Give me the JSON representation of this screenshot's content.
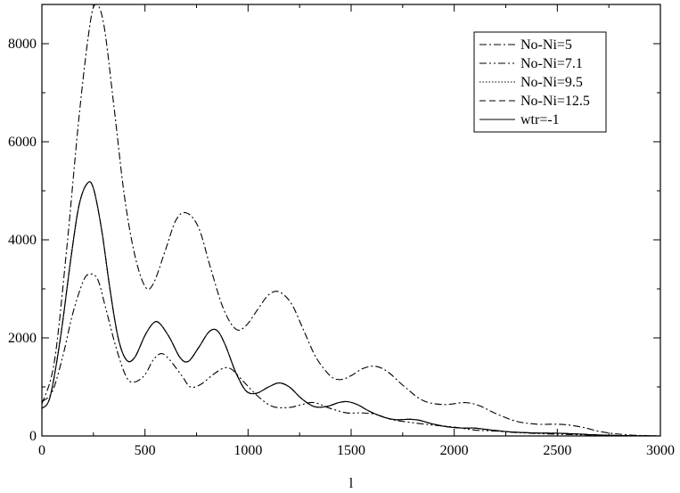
{
  "chart_data": {
    "type": "line",
    "title": "",
    "xlabel": "l",
    "ylabel": "",
    "xlim": [
      0,
      3000
    ],
    "ylim": [
      0,
      8800
    ],
    "grid": false,
    "legend_position": "top-right",
    "x_ticks": [
      0,
      500,
      1000,
      1500,
      2000,
      2500,
      3000
    ],
    "x_tick_labels": [
      "0",
      "500",
      "1000",
      "1500",
      "2000",
      "2500",
      "3000"
    ],
    "y_ticks": [
      0,
      2000,
      4000,
      6000,
      8000
    ],
    "y_tick_labels": [
      "0",
      "2000",
      "4000",
      "6000",
      "8000"
    ],
    "series": [
      {
        "name": "No-Ni=5",
        "dash": "dash-dot",
        "points": [
          [
            0,
            650
          ],
          [
            60,
            1500
          ],
          [
            120,
            3800
          ],
          [
            180,
            6500
          ],
          [
            230,
            8300
          ],
          [
            260,
            8800
          ],
          [
            300,
            8400
          ],
          [
            350,
            6700
          ],
          [
            400,
            4900
          ],
          [
            450,
            3700
          ],
          [
            500,
            3050
          ],
          [
            540,
            3100
          ],
          [
            600,
            3800
          ],
          [
            650,
            4400
          ],
          [
            700,
            4550
          ],
          [
            760,
            4250
          ],
          [
            820,
            3400
          ],
          [
            880,
            2600
          ],
          [
            940,
            2180
          ],
          [
            990,
            2250
          ],
          [
            1050,
            2600
          ],
          [
            1100,
            2880
          ],
          [
            1150,
            2940
          ],
          [
            1210,
            2700
          ],
          [
            1270,
            2150
          ],
          [
            1330,
            1600
          ],
          [
            1400,
            1220
          ],
          [
            1450,
            1150
          ],
          [
            1500,
            1230
          ],
          [
            1560,
            1380
          ],
          [
            1620,
            1420
          ],
          [
            1680,
            1300
          ],
          [
            1760,
            1000
          ],
          [
            1850,
            720
          ],
          [
            1950,
            640
          ],
          [
            2050,
            680
          ],
          [
            2120,
            620
          ],
          [
            2200,
            460
          ],
          [
            2300,
            300
          ],
          [
            2400,
            240
          ],
          [
            2480,
            240
          ],
          [
            2540,
            230
          ],
          [
            2620,
            180
          ],
          [
            2720,
            80
          ],
          [
            2850,
            20
          ],
          [
            3000,
            0
          ]
        ]
      },
      {
        "name": "No-Ni=7.1",
        "dash": "dash-dot-dot",
        "points": [
          [
            0,
            700
          ],
          [
            50,
            900
          ],
          [
            100,
            1600
          ],
          [
            150,
            2500
          ],
          [
            200,
            3150
          ],
          [
            230,
            3300
          ],
          [
            270,
            3200
          ],
          [
            310,
            2600
          ],
          [
            360,
            1800
          ],
          [
            410,
            1200
          ],
          [
            450,
            1100
          ],
          [
            500,
            1250
          ],
          [
            540,
            1550
          ],
          [
            580,
            1680
          ],
          [
            620,
            1550
          ],
          [
            680,
            1220
          ],
          [
            720,
            1000
          ],
          [
            770,
            1050
          ],
          [
            830,
            1250
          ],
          [
            880,
            1380
          ],
          [
            920,
            1360
          ],
          [
            980,
            1100
          ],
          [
            1050,
            800
          ],
          [
            1120,
            600
          ],
          [
            1200,
            580
          ],
          [
            1260,
            640
          ],
          [
            1320,
            680
          ],
          [
            1400,
            560
          ],
          [
            1480,
            470
          ],
          [
            1550,
            470
          ],
          [
            1620,
            440
          ],
          [
            1700,
            330
          ],
          [
            1800,
            270
          ],
          [
            1900,
            220
          ],
          [
            2000,
            180
          ],
          [
            2100,
            120
          ],
          [
            2200,
            100
          ],
          [
            2300,
            70
          ],
          [
            2400,
            50
          ],
          [
            2500,
            35
          ],
          [
            2600,
            25
          ],
          [
            2700,
            15
          ],
          [
            2850,
            5
          ],
          [
            3000,
            0
          ]
        ]
      },
      {
        "name": "No-Ni=9.5",
        "dash": "dotted",
        "points": [
          [
            0,
            560
          ],
          [
            40,
            800
          ],
          [
            90,
            2000
          ],
          [
            140,
            3600
          ],
          [
            180,
            4700
          ],
          [
            220,
            5150
          ],
          [
            250,
            5050
          ],
          [
            290,
            4200
          ],
          [
            330,
            3000
          ],
          [
            370,
            2000
          ],
          [
            410,
            1550
          ],
          [
            450,
            1600
          ],
          [
            500,
            2050
          ],
          [
            540,
            2300
          ],
          [
            570,
            2300
          ],
          [
            620,
            2000
          ],
          [
            670,
            1600
          ],
          [
            710,
            1520
          ],
          [
            760,
            1800
          ],
          [
            810,
            2120
          ],
          [
            850,
            2150
          ],
          [
            890,
            1850
          ],
          [
            940,
            1300
          ],
          [
            990,
            920
          ],
          [
            1040,
            870
          ],
          [
            1100,
            1000
          ],
          [
            1150,
            1080
          ],
          [
            1200,
            1000
          ],
          [
            1260,
            760
          ],
          [
            1320,
            600
          ],
          [
            1380,
            600
          ],
          [
            1440,
            680
          ],
          [
            1480,
            700
          ],
          [
            1530,
            640
          ],
          [
            1590,
            500
          ],
          [
            1660,
            380
          ],
          [
            1720,
            330
          ],
          [
            1780,
            340
          ],
          [
            1830,
            320
          ],
          [
            1900,
            240
          ],
          [
            1980,
            180
          ],
          [
            2050,
            160
          ],
          [
            2100,
            160
          ],
          [
            2180,
            120
          ],
          [
            2280,
            80
          ],
          [
            2400,
            60
          ],
          [
            2500,
            55
          ],
          [
            2600,
            40
          ],
          [
            2700,
            20
          ],
          [
            2850,
            5
          ],
          [
            3000,
            0
          ]
        ]
      },
      {
        "name": "No-Ni=12.5",
        "dash": "dashed",
        "points": [
          [
            0,
            560
          ],
          [
            40,
            800
          ],
          [
            90,
            2000
          ],
          [
            140,
            3600
          ],
          [
            180,
            4700
          ],
          [
            220,
            5150
          ],
          [
            250,
            5050
          ],
          [
            290,
            4200
          ],
          [
            330,
            3000
          ],
          [
            370,
            2000
          ],
          [
            410,
            1550
          ],
          [
            450,
            1600
          ],
          [
            500,
            2050
          ],
          [
            540,
            2300
          ],
          [
            570,
            2300
          ],
          [
            620,
            2000
          ],
          [
            670,
            1600
          ],
          [
            710,
            1520
          ],
          [
            760,
            1800
          ],
          [
            810,
            2120
          ],
          [
            850,
            2150
          ],
          [
            890,
            1850
          ],
          [
            940,
            1300
          ],
          [
            990,
            920
          ],
          [
            1040,
            870
          ],
          [
            1100,
            1000
          ],
          [
            1150,
            1080
          ],
          [
            1200,
            1000
          ],
          [
            1260,
            760
          ],
          [
            1320,
            600
          ],
          [
            1380,
            600
          ],
          [
            1440,
            680
          ],
          [
            1480,
            700
          ],
          [
            1530,
            640
          ],
          [
            1590,
            500
          ],
          [
            1660,
            380
          ],
          [
            1720,
            330
          ],
          [
            1780,
            340
          ],
          [
            1830,
            320
          ],
          [
            1900,
            240
          ],
          [
            1980,
            180
          ],
          [
            2050,
            160
          ],
          [
            2100,
            160
          ],
          [
            2180,
            120
          ],
          [
            2280,
            80
          ],
          [
            2400,
            60
          ],
          [
            2500,
            55
          ],
          [
            2600,
            40
          ],
          [
            2700,
            20
          ],
          [
            2850,
            5
          ],
          [
            3000,
            0
          ]
        ]
      },
      {
        "name": "wtr=-1",
        "dash": "solid",
        "points": [
          [
            0,
            560
          ],
          [
            40,
            800
          ],
          [
            90,
            2000
          ],
          [
            140,
            3600
          ],
          [
            180,
            4700
          ],
          [
            220,
            5150
          ],
          [
            250,
            5050
          ],
          [
            290,
            4200
          ],
          [
            330,
            3000
          ],
          [
            370,
            2000
          ],
          [
            410,
            1550
          ],
          [
            450,
            1600
          ],
          [
            500,
            2050
          ],
          [
            540,
            2300
          ],
          [
            570,
            2300
          ],
          [
            620,
            2000
          ],
          [
            670,
            1600
          ],
          [
            710,
            1520
          ],
          [
            760,
            1800
          ],
          [
            810,
            2120
          ],
          [
            850,
            2150
          ],
          [
            890,
            1850
          ],
          [
            940,
            1300
          ],
          [
            990,
            920
          ],
          [
            1040,
            870
          ],
          [
            1100,
            1000
          ],
          [
            1150,
            1080
          ],
          [
            1200,
            1000
          ],
          [
            1260,
            760
          ],
          [
            1320,
            600
          ],
          [
            1380,
            600
          ],
          [
            1440,
            680
          ],
          [
            1480,
            700
          ],
          [
            1530,
            640
          ],
          [
            1590,
            500
          ],
          [
            1660,
            380
          ],
          [
            1720,
            330
          ],
          [
            1780,
            340
          ],
          [
            1830,
            320
          ],
          [
            1900,
            240
          ],
          [
            1980,
            180
          ],
          [
            2050,
            160
          ],
          [
            2100,
            160
          ],
          [
            2180,
            120
          ],
          [
            2280,
            80
          ],
          [
            2400,
            60
          ],
          [
            2500,
            55
          ],
          [
            2600,
            40
          ],
          [
            2700,
            20
          ],
          [
            2850,
            5
          ],
          [
            3000,
            0
          ]
        ]
      }
    ]
  }
}
